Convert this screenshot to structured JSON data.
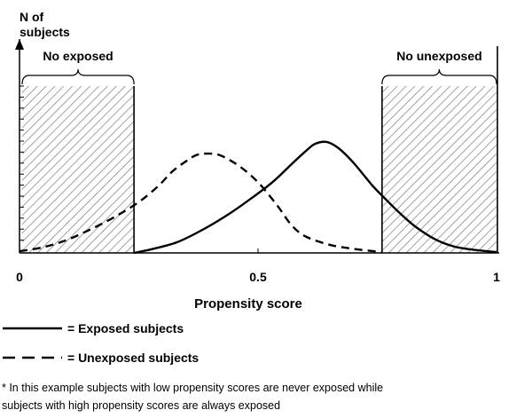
{
  "chart_data": {
    "type": "line",
    "ylabel": "N of subjects",
    "xlabel": "Propensity score",
    "xlim": [
      0,
      1
    ],
    "x_ticks": [
      {
        "value": 0,
        "label": "0"
      },
      {
        "value": 0.5,
        "label": "0.5"
      },
      {
        "value": 1,
        "label": "1"
      }
    ],
    "y_ticks_count": 15,
    "series": [
      {
        "name": "Exposed subjects",
        "style": "solid",
        "color": "#000000",
        "points": [
          [
            0.24,
            0.0
          ],
          [
            0.28,
            2.5
          ],
          [
            0.33,
            6.5
          ],
          [
            0.38,
            13.5
          ],
          [
            0.43,
            22.0
          ],
          [
            0.48,
            32.0
          ],
          [
            0.53,
            43.0
          ],
          [
            0.57,
            54.0
          ],
          [
            0.6,
            62.0
          ],
          [
            0.62,
            66.5
          ],
          [
            0.645,
            67.5
          ],
          [
            0.67,
            63.5
          ],
          [
            0.7,
            55.0
          ],
          [
            0.74,
            41.0
          ],
          [
            0.77,
            32.0
          ],
          [
            0.8,
            23.5
          ],
          [
            0.83,
            16.0
          ],
          [
            0.87,
            8.5
          ],
          [
            0.91,
            4.0
          ],
          [
            0.95,
            2.0
          ],
          [
            1.0,
            0.5
          ]
        ]
      },
      {
        "name": "Unexposed subjects",
        "style": "dashed",
        "color": "#000000",
        "points": [
          [
            0.0,
            1.0
          ],
          [
            0.05,
            3.5
          ],
          [
            0.1,
            8.0
          ],
          [
            0.15,
            14.5
          ],
          [
            0.2,
            22.0
          ],
          [
            0.25,
            31.0
          ],
          [
            0.29,
            40.5
          ],
          [
            0.32,
            49.5
          ],
          [
            0.35,
            56.0
          ],
          [
            0.37,
            59.5
          ],
          [
            0.39,
            60.5
          ],
          [
            0.42,
            59.5
          ],
          [
            0.46,
            53.0
          ],
          [
            0.5,
            43.0
          ],
          [
            0.54,
            29.0
          ],
          [
            0.57,
            17.0
          ],
          [
            0.6,
            10.0
          ],
          [
            0.65,
            5.0
          ],
          [
            0.7,
            2.5
          ],
          [
            0.76,
            0.5
          ]
        ]
      }
    ],
    "regions": [
      {
        "label": "No exposed",
        "x_start": 0,
        "x_end": 0.24,
        "fill": "hatched"
      },
      {
        "label": "No unexposed",
        "x_start": 0.76,
        "x_end": 1.0,
        "fill": "hatched"
      }
    ],
    "legend": [
      {
        "series": "Exposed subjects",
        "label": "= Exposed subjects",
        "style": "solid"
      },
      {
        "series": "Unexposed subjects",
        "label": "= Unexposed subjects",
        "style": "dashed"
      }
    ],
    "footnote_lines": [
      "* In this example subjects with low propensity scores are never exposed while",
      "subjects with high propensity scores are always exposed"
    ],
    "grid": false
  }
}
